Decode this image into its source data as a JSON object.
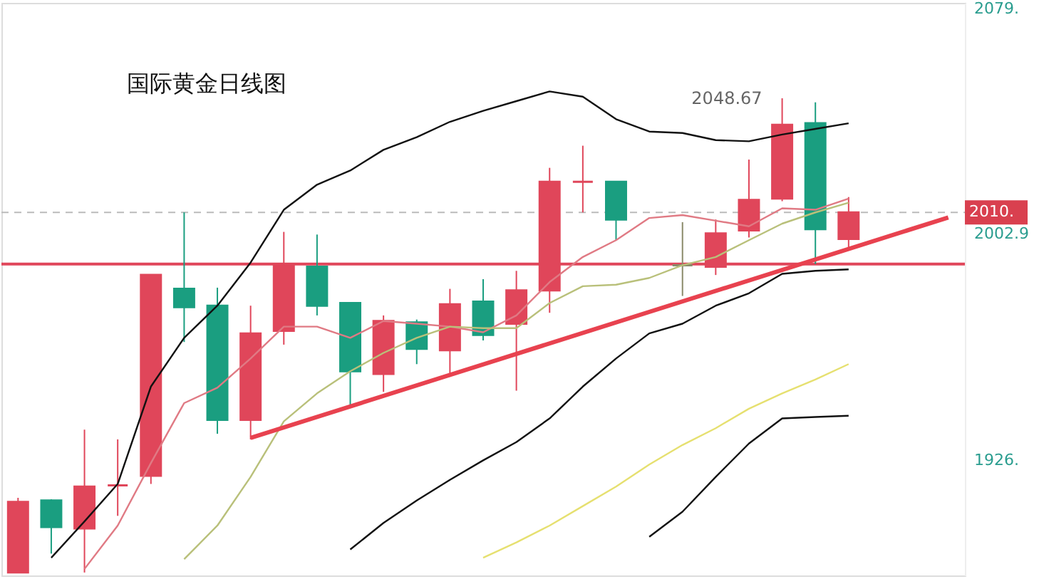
{
  "chart_data": {
    "type": "candlestick",
    "title": "国际黄金日线图",
    "categories": [
      null,
      null,
      null,
      null,
      null,
      null,
      null,
      null,
      null,
      null,
      null,
      null,
      null,
      null,
      null,
      null,
      null,
      null,
      null,
      null,
      null,
      null,
      null,
      null,
      null,
      null,
      null,
      null,
      null
    ],
    "ohlc": [
      [
        1888,
        1913.3,
        1888,
        1911.9
      ],
      [
        1912.4,
        1912.8,
        1894.4,
        1903.4
      ],
      [
        1902.9,
        1936.4,
        1888,
        1917.1
      ],
      [
        1917.5,
        1933.1,
        1907.2,
        1917.5
      ],
      [
        1920.8,
        1988.8,
        1918.0,
        1988.8
      ],
      [
        1984.1,
        2010.0,
        1966.1,
        1977.9
      ],
      [
        1978.4,
        1984.5,
        1935.0,
        1939.7
      ],
      [
        1939.7,
        1978.4,
        1933.1,
        1969.0
      ],
      [
        1969.9,
        2003.4,
        1965.2,
        1992.5
      ],
      [
        1991.6,
        2002.5,
        1975.1,
        1978.4
      ],
      [
        1979.3,
        1979.3,
        1944.0,
        1956.2
      ],
      [
        1955.3,
        1975.1,
        1949.2,
        1973.2
      ],
      [
        1972.7,
        1973.7,
        1958.6,
        1963.8
      ],
      [
        1963.3,
        1984.1,
        1954.3,
        1978.9
      ],
      [
        1979.8,
        1987.4,
        1966.6,
        1968.5
      ],
      [
        1972.3,
        1990.2,
        1949.6,
        1983.6
      ],
      [
        1983.6,
        2025.1,
        1976.0,
        2020.4
      ],
      [
        2020.4,
        2032.6,
        2010.0,
        2020.4
      ],
      [
        2020.4,
        2020.4,
        2000.6,
        2007.6
      ],
      null,
      [
        1992.1,
        2006.7,
        1981.7,
        1992.1
      ],
      [
        1991.6,
        2007.6,
        1988.8,
        2002.9
      ],
      [
        2003.9,
        2027.9,
        2001.5,
        2014.2
      ],
      [
        2014.7,
        2048.67,
        2013.8,
        2039.7
      ],
      [
        2040.2,
        2047.3,
        1992.5,
        2004.3
      ],
      [
        2001.0,
        2015.2,
        1997.3,
        2010.0
      ],
      null,
      null,
      null
    ],
    "colors": [
      "#e0465a",
      "#1a9e80",
      "#e0465a",
      "#e0465a",
      "#e0465a",
      "#1a9e80",
      "#1a9e80",
      "#e0465a",
      "#e0465a",
      "#1a9e80",
      "#1a9e80",
      "#e0465a",
      "#1a9e80",
      "#e0465a",
      "#1a9e80",
      "#e0465a",
      "#e0465a",
      "#e0465a",
      "#1a9e80",
      null,
      "#8a8a6a",
      "#e0465a",
      "#e0465a",
      "#e0465a",
      "#1a9e80",
      "#e0465a",
      null,
      null,
      null
    ],
    "series": [
      {
        "type": "line",
        "color": "#111111",
        "values": [
          null,
          1893.0,
          1905.3,
          1918.0,
          1951.0,
          1967.5,
          1978.4,
          1993.0,
          2010.9,
          2019.4,
          2024.2,
          2031.2,
          2035.5,
          2040.7,
          2044.4,
          2047.7,
          2051.0,
          2049.2,
          2041.6,
          2037.4,
          2036.9,
          2034.5,
          2034.1,
          2036.4,
          2038.3,
          2040.2,
          null,
          null,
          null
        ]
      },
      {
        "type": "line",
        "color": "#111111",
        "values": [
          null,
          null,
          null,
          null,
          null,
          null,
          null,
          null,
          null,
          null,
          1895.8,
          1904.8,
          1912.4,
          1919.4,
          1926.0,
          1932.2,
          1940.2,
          1951.0,
          1960.5,
          1969.0,
          1972.3,
          1978.4,
          1982.6,
          1989.2,
          1990.2,
          1990.7,
          null,
          null,
          null
        ]
      },
      {
        "type": "line",
        "color": "#111111",
        "values": [
          null,
          null,
          null,
          null,
          null,
          null,
          null,
          null,
          null,
          null,
          null,
          null,
          null,
          null,
          null,
          null,
          null,
          null,
          null,
          1900.1,
          1908.6,
          1920.4,
          1931.7,
          1940.2,
          1940.7,
          1941.1,
          null,
          null,
          null
        ]
      },
      {
        "type": "line",
        "color": "#e07a84",
        "values": [
          null,
          null,
          1889.2,
          1903.9,
          1925.1,
          1945.4,
          1950.6,
          1960.5,
          1971.3,
          1971.3,
          1967.5,
          1973.2,
          1972.3,
          1971.3,
          1969.4,
          1975.1,
          1986.4,
          1994.9,
          2000.6,
          2008.1,
          2009.1,
          2007.2,
          2005.3,
          2011.4,
          2010.9,
          2014.7,
          null,
          null,
          null
        ]
      },
      {
        "type": "line",
        "color": "#b9c07a",
        "values": [
          null,
          null,
          null,
          null,
          null,
          1892.5,
          1903.9,
          1920.4,
          1939.2,
          1948.7,
          1956.2,
          1962.4,
          1967.5,
          1971.3,
          1970.8,
          1970.8,
          1979.3,
          1985.0,
          1985.5,
          1987.8,
          1992.1,
          1994.9,
          2000.6,
          2006.2,
          2010.0,
          2013.3,
          null,
          null,
          null
        ]
      },
      {
        "type": "line",
        "color": "#e6e070",
        "values": [
          null,
          null,
          null,
          null,
          null,
          null,
          null,
          null,
          null,
          null,
          null,
          null,
          null,
          null,
          1893.0,
          1898.2,
          1903.9,
          1910.5,
          1917.1,
          1924.6,
          1931.2,
          1936.9,
          1943.5,
          1948.7,
          1953.4,
          1958.6,
          null,
          null,
          null
        ]
      },
      {
        "type": "line",
        "color": "#e8424f",
        "values": [
          null,
          null,
          null,
          null,
          null,
          null,
          null,
          1933.6,
          null,
          null,
          null,
          null,
          null,
          null,
          null,
          null,
          null,
          null,
          null,
          null,
          null,
          null,
          null,
          null,
          null,
          null,
          null,
          null,
          2008.3
        ]
      }
    ],
    "ylim": [
      1887,
      2081
    ],
    "yticks": [
      {
        "value": 2079,
        "label": "2079."
      },
      {
        "value": 2002.9,
        "label": "2002.9"
      },
      {
        "value": 1926,
        "label": "1926."
      }
    ],
    "ref_lines": [
      {
        "axis": "y",
        "value": 2010,
        "label": "2010.",
        "color": "#bbbbbb",
        "line_style": "dashed"
      },
      {
        "axis": "y",
        "value": 1992.5,
        "color": "#e0465a",
        "line_style": "solid"
      }
    ],
    "annotations": [
      "2048.67"
    ],
    "tick_labels": "y",
    "grid": false
  }
}
